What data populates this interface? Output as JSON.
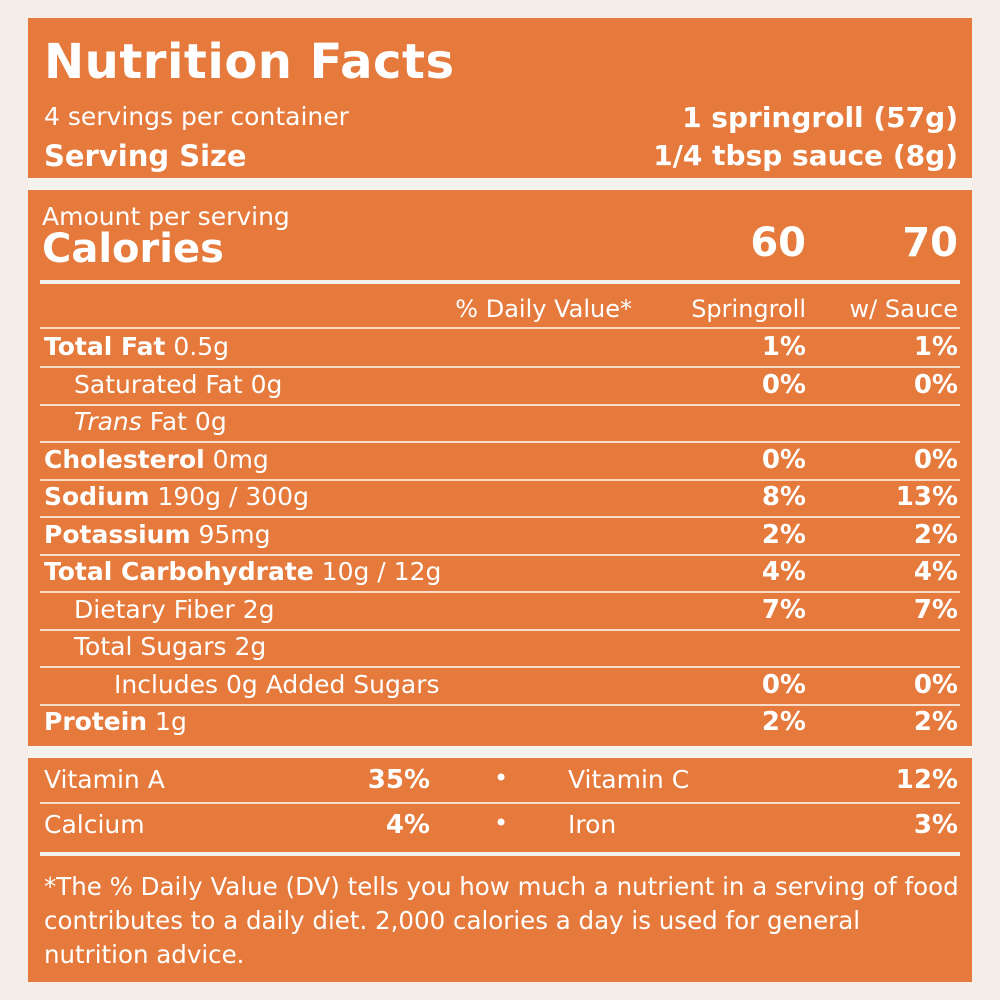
{
  "header": {
    "title": "Nutrition Facts",
    "servings_per_container": "4 servings per container",
    "serving_size_label": "Serving Size",
    "serving_size_line1": "1 springroll (57g)",
    "serving_size_line2": "1/4 tbsp sauce (8g)"
  },
  "calories": {
    "amount_per_serving": "Amount per serving",
    "label": "Calories",
    "springroll": "60",
    "with_sauce": "70"
  },
  "columns": {
    "daily_value": "% Daily Value*",
    "springroll": "Springroll",
    "with_sauce": "w/ Sauce"
  },
  "nutrients": [
    {
      "bold": "Total Fat",
      "rest": " 0.5g",
      "dv1": "1%",
      "dv2": "1%"
    },
    {
      "bold": "",
      "rest": "Saturated Fat 0g",
      "dv1": "0%",
      "dv2": "0%"
    },
    {
      "italic": "Trans",
      "rest": " Fat 0g",
      "dv1": "",
      "dv2": ""
    },
    {
      "bold": "Cholesterol",
      "rest": " 0mg",
      "dv1": "0%",
      "dv2": "0%"
    },
    {
      "bold": "Sodium",
      "rest": " 190g / 300g",
      "dv1": "8%",
      "dv2": "13%"
    },
    {
      "bold": "Potassium",
      "rest": " 95mg",
      "dv1": "2%",
      "dv2": "2%"
    },
    {
      "bold": "Total Carbohydrate",
      "rest": " 10g / 12g",
      "dv1": "4%",
      "dv2": "4%"
    },
    {
      "bold": "",
      "rest": "Dietary Fiber 2g",
      "dv1": "7%",
      "dv2": "7%"
    },
    {
      "bold": "",
      "rest": "Total Sugars 2g",
      "dv1": "",
      "dv2": ""
    },
    {
      "bold": "",
      "rest": "Includes 0g Added Sugars",
      "dv1": "0%",
      "dv2": "0%"
    },
    {
      "bold": "Protein",
      "rest": " 1g",
      "dv1": "2%",
      "dv2": "2%"
    }
  ],
  "vitamins": {
    "a_label": "Vitamin A",
    "a_value": "35%",
    "c_label": "Vitamin C",
    "c_value": "12%",
    "calcium_label": "Calcium",
    "calcium_value": "4%",
    "iron_label": "Iron",
    "iron_value": "3%",
    "separator": "•"
  },
  "footnote": "*The % Daily Value (DV) tells you how much a nutrient in a serving of food contributes to a daily diet. 2,000 calories a day is used for general nutrition advice.",
  "colors": {
    "panel": "#e57a3c",
    "text": "#ffffff",
    "rules": "#f5f1ec"
  }
}
